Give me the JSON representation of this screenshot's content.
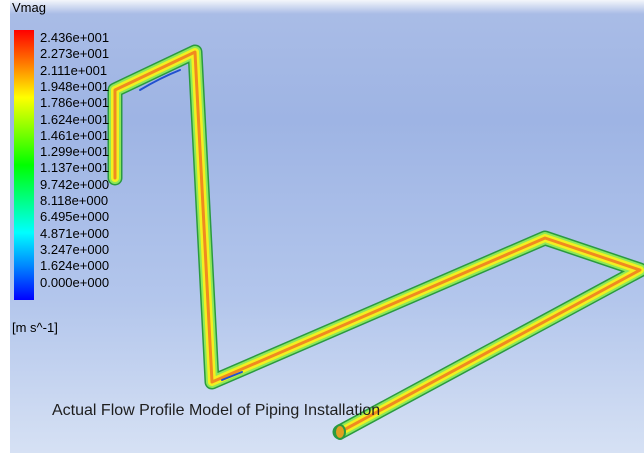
{
  "legend": {
    "title": "Vmag",
    "labels": [
      "2.436e+001",
      "2.273e+001",
      "2.111e+001",
      "1.948e+001",
      "1.786e+001",
      "1.624e+001",
      "1.461e+001",
      "1.299e+001",
      "1.137e+001",
      "9.742e+000",
      "8.118e+000",
      "6.495e+000",
      "4.871e+000",
      "3.247e+000",
      "1.624e+000",
      "0.000e+000"
    ],
    "unit": "[m s^-1]"
  },
  "caption": "Actual Flow Profile Model of Piping Installation"
}
